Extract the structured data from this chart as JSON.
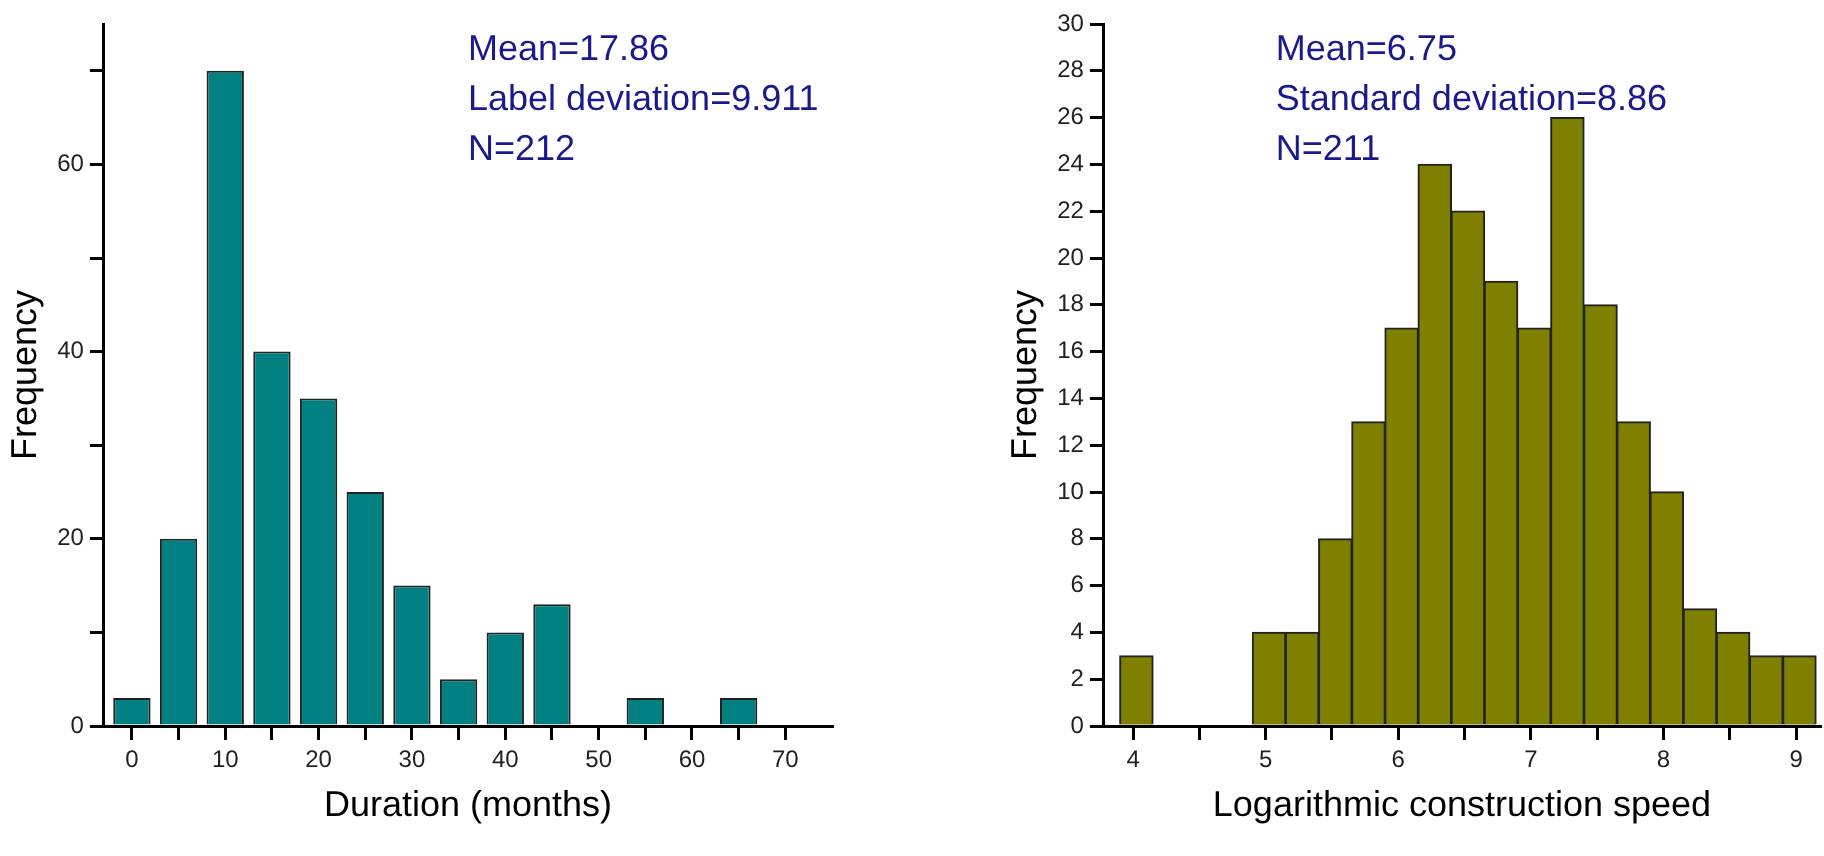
{
  "chart_data": [
    {
      "type": "bar",
      "x": [
        0,
        5,
        10,
        15,
        20,
        25,
        30,
        35,
        40,
        45,
        50,
        55,
        60,
        65
      ],
      "values": [
        3,
        20,
        70,
        40,
        35,
        25,
        15,
        5,
        10,
        13,
        0,
        3,
        0,
        3
      ],
      "color": "#008080",
      "xlabel": "Duration (months)",
      "ylabel": "Frequency",
      "xlim": [
        -3,
        75
      ],
      "xticks": [
        0,
        {
          "value": 5,
          "label": null
        },
        10,
        {
          "value": 15,
          "label": null
        },
        20,
        {
          "value": 25,
          "label": null
        },
        30,
        {
          "value": 35,
          "label": null
        },
        40,
        {
          "value": 45,
          "label": null
        },
        50,
        {
          "value": 55,
          "label": null
        },
        60,
        {
          "value": 65,
          "label": null
        },
        70
      ],
      "ylim": [
        0,
        75
      ],
      "yticks": [
        0,
        {
          "value": 10,
          "label": null
        },
        20,
        {
          "value": 30,
          "label": null
        },
        40,
        {
          "value": 50,
          "label": null
        },
        60,
        {
          "value": 70,
          "label": null
        }
      ],
      "grid": false,
      "legend": false,
      "annotations": [
        "Mean=17.86",
        "Label deviation=9.911",
        "N=212"
      ]
    },
    {
      "type": "histogram",
      "bins": [
        3.9,
        4.15,
        4.4,
        4.65,
        4.9,
        5.15,
        5.4,
        5.65,
        5.9,
        6.15,
        6.4,
        6.65,
        6.9,
        7.15,
        7.4,
        7.65,
        7.9,
        8.15,
        8.4,
        8.65,
        8.9,
        9.15
      ],
      "values": [
        3,
        0,
        0,
        0,
        4,
        4,
        8,
        13,
        17,
        24,
        22,
        19,
        17,
        26,
        18,
        13,
        10,
        5,
        4,
        3,
        3
      ],
      "color": "#808000",
      "xlabel": "Logarithmic construction speed",
      "ylabel": "Frequency",
      "xlim": [
        3.78,
        9.18
      ],
      "xticks": [
        4,
        {
          "value": 4.5,
          "label": null
        },
        5,
        {
          "value": 5.5,
          "label": null
        },
        6,
        {
          "value": 6.5,
          "label": null
        },
        7,
        {
          "value": 7.5,
          "label": null
        },
        8,
        {
          "value": 8.5,
          "label": null
        },
        9
      ],
      "ylim": [
        0,
        30
      ],
      "yticks": [
        0,
        2,
        4,
        6,
        8,
        10,
        12,
        14,
        16,
        18,
        20,
        22,
        24,
        26,
        28,
        30
      ],
      "grid": false,
      "legend": false,
      "annotations": [
        "Mean=6.75",
        "Standard deviation=8.86",
        "N=211"
      ]
    }
  ]
}
